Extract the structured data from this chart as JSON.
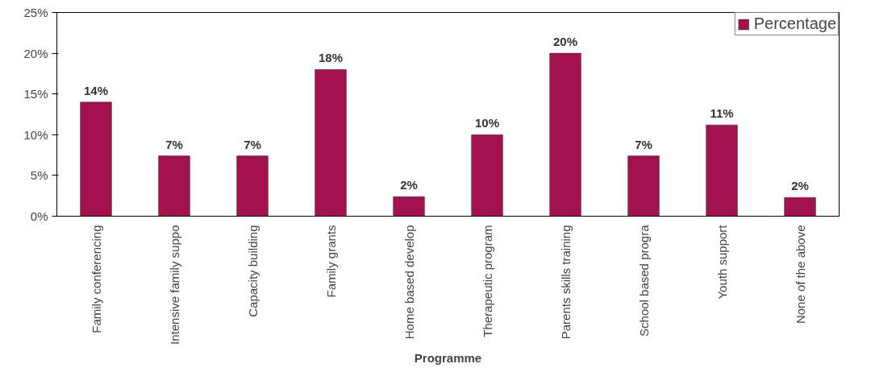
{
  "chart_data": {
    "type": "bar",
    "xlabel": "Programme",
    "categories": [
      "Family conferencing",
      "Intensive family suppo",
      "Capacity building",
      "Family grants",
      "Home based develop",
      "Therapeutic program",
      "Parents skills training",
      "School based progra",
      "Youth support",
      "None of the above"
    ],
    "series": [
      {
        "name": "Percentage",
        "color": "#a3124f",
        "values": [
          14,
          7.4,
          7.4,
          18,
          2.4,
          10,
          20,
          7.4,
          11.2,
          2.3
        ],
        "value_labels": [
          "14%",
          "7%",
          "7%",
          "18%",
          "2%",
          "10%",
          "20%",
          "7%",
          "11%",
          "2%"
        ]
      }
    ],
    "ylim": [
      0,
      25
    ],
    "yticks": [
      {
        "value": 0,
        "label": "0%"
      },
      {
        "value": 5,
        "label": "5%"
      },
      {
        "value": 10,
        "label": "10%"
      },
      {
        "value": 15,
        "label": "15%"
      },
      {
        "value": 20,
        "label": "20%"
      },
      {
        "value": 25,
        "label": "25%"
      }
    ],
    "grid": false,
    "legend": "top right"
  }
}
